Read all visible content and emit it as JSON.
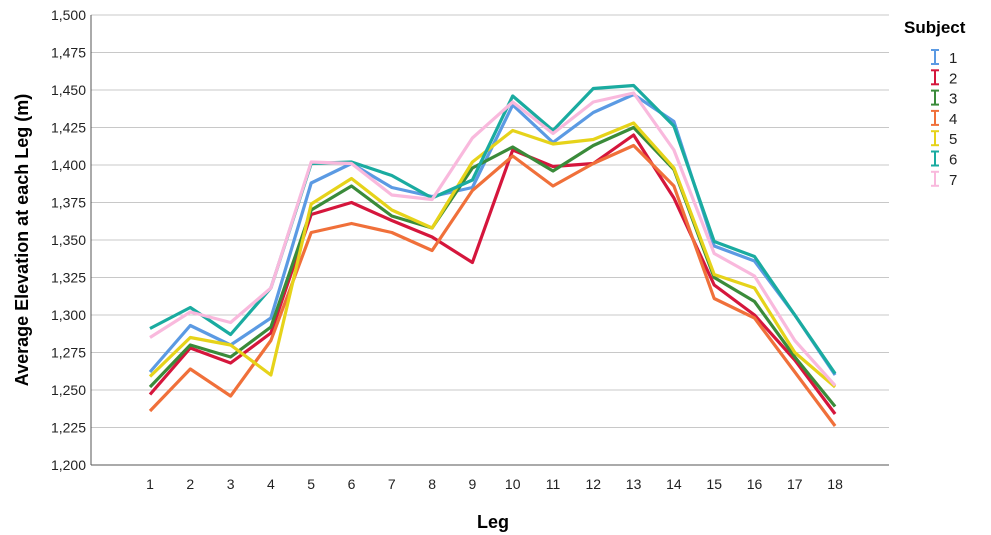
{
  "chart_data": {
    "type": "line",
    "xlabel": "Leg",
    "ylabel": "Average Elevation at each Leg (m)",
    "ylim": [
      1200,
      1500
    ],
    "yticks": [
      "1,200",
      "1,225",
      "1,250",
      "1,275",
      "1,300",
      "1,325",
      "1,350",
      "1,375",
      "1,400",
      "1,425",
      "1,450",
      "1,475",
      "1,500"
    ],
    "ytick_values": [
      1200,
      1225,
      1250,
      1275,
      1300,
      1325,
      1350,
      1375,
      1400,
      1425,
      1450,
      1475,
      1500
    ],
    "categories": [
      "1",
      "2",
      "3",
      "4",
      "5",
      "6",
      "7",
      "8",
      "9",
      "10",
      "11",
      "12",
      "13",
      "14",
      "15",
      "16",
      "17",
      "18"
    ],
    "grid": "horizontal",
    "legend": {
      "title": "Subject",
      "placement": "right"
    },
    "series": [
      {
        "name": "1",
        "color": "#5b9ae3",
        "values": [
          1262,
          1293,
          1280,
          1298,
          1388,
          1401,
          1385,
          1379,
          1385,
          1440,
          1415,
          1435,
          1447,
          1429,
          1346,
          1336,
          1300,
          1260
        ]
      },
      {
        "name": "2",
        "color": "#d5163c",
        "values": [
          1247,
          1278,
          1268,
          1288,
          1367,
          1375,
          1363,
          1352,
          1335,
          1410,
          1399,
          1401,
          1420,
          1378,
          1320,
          1300,
          1270,
          1234
        ]
      },
      {
        "name": "3",
        "color": "#3a8b3a",
        "values": [
          1252,
          1280,
          1272,
          1292,
          1370,
          1386,
          1366,
          1358,
          1398,
          1412,
          1396,
          1413,
          1425,
          1397,
          1325,
          1309,
          1272,
          1239
        ]
      },
      {
        "name": "4",
        "color": "#f0703a",
        "values": [
          1236,
          1264,
          1246,
          1283,
          1355,
          1361,
          1355,
          1343,
          1383,
          1406,
          1386,
          1401,
          1413,
          1386,
          1311,
          1298,
          1262,
          1226
        ]
      },
      {
        "name": "5",
        "color": "#e6d31a",
        "values": [
          1259,
          1285,
          1280,
          1260,
          1374,
          1391,
          1370,
          1358,
          1402,
          1423,
          1414,
          1417,
          1428,
          1398,
          1327,
          1318,
          1275,
          1252
        ]
      },
      {
        "name": "6",
        "color": "#1aaba0",
        "values": [
          1291,
          1305,
          1287,
          1318,
          1401,
          1402,
          1393,
          1378,
          1390,
          1446,
          1423,
          1451,
          1453,
          1426,
          1349,
          1339,
          1300,
          1261
        ]
      },
      {
        "name": "7",
        "color": "#f9b9dd",
        "values": [
          1285,
          1302,
          1295,
          1318,
          1402,
          1401,
          1380,
          1377,
          1418,
          1442,
          1421,
          1442,
          1448,
          1410,
          1341,
          1326,
          1283,
          1253
        ]
      }
    ]
  }
}
